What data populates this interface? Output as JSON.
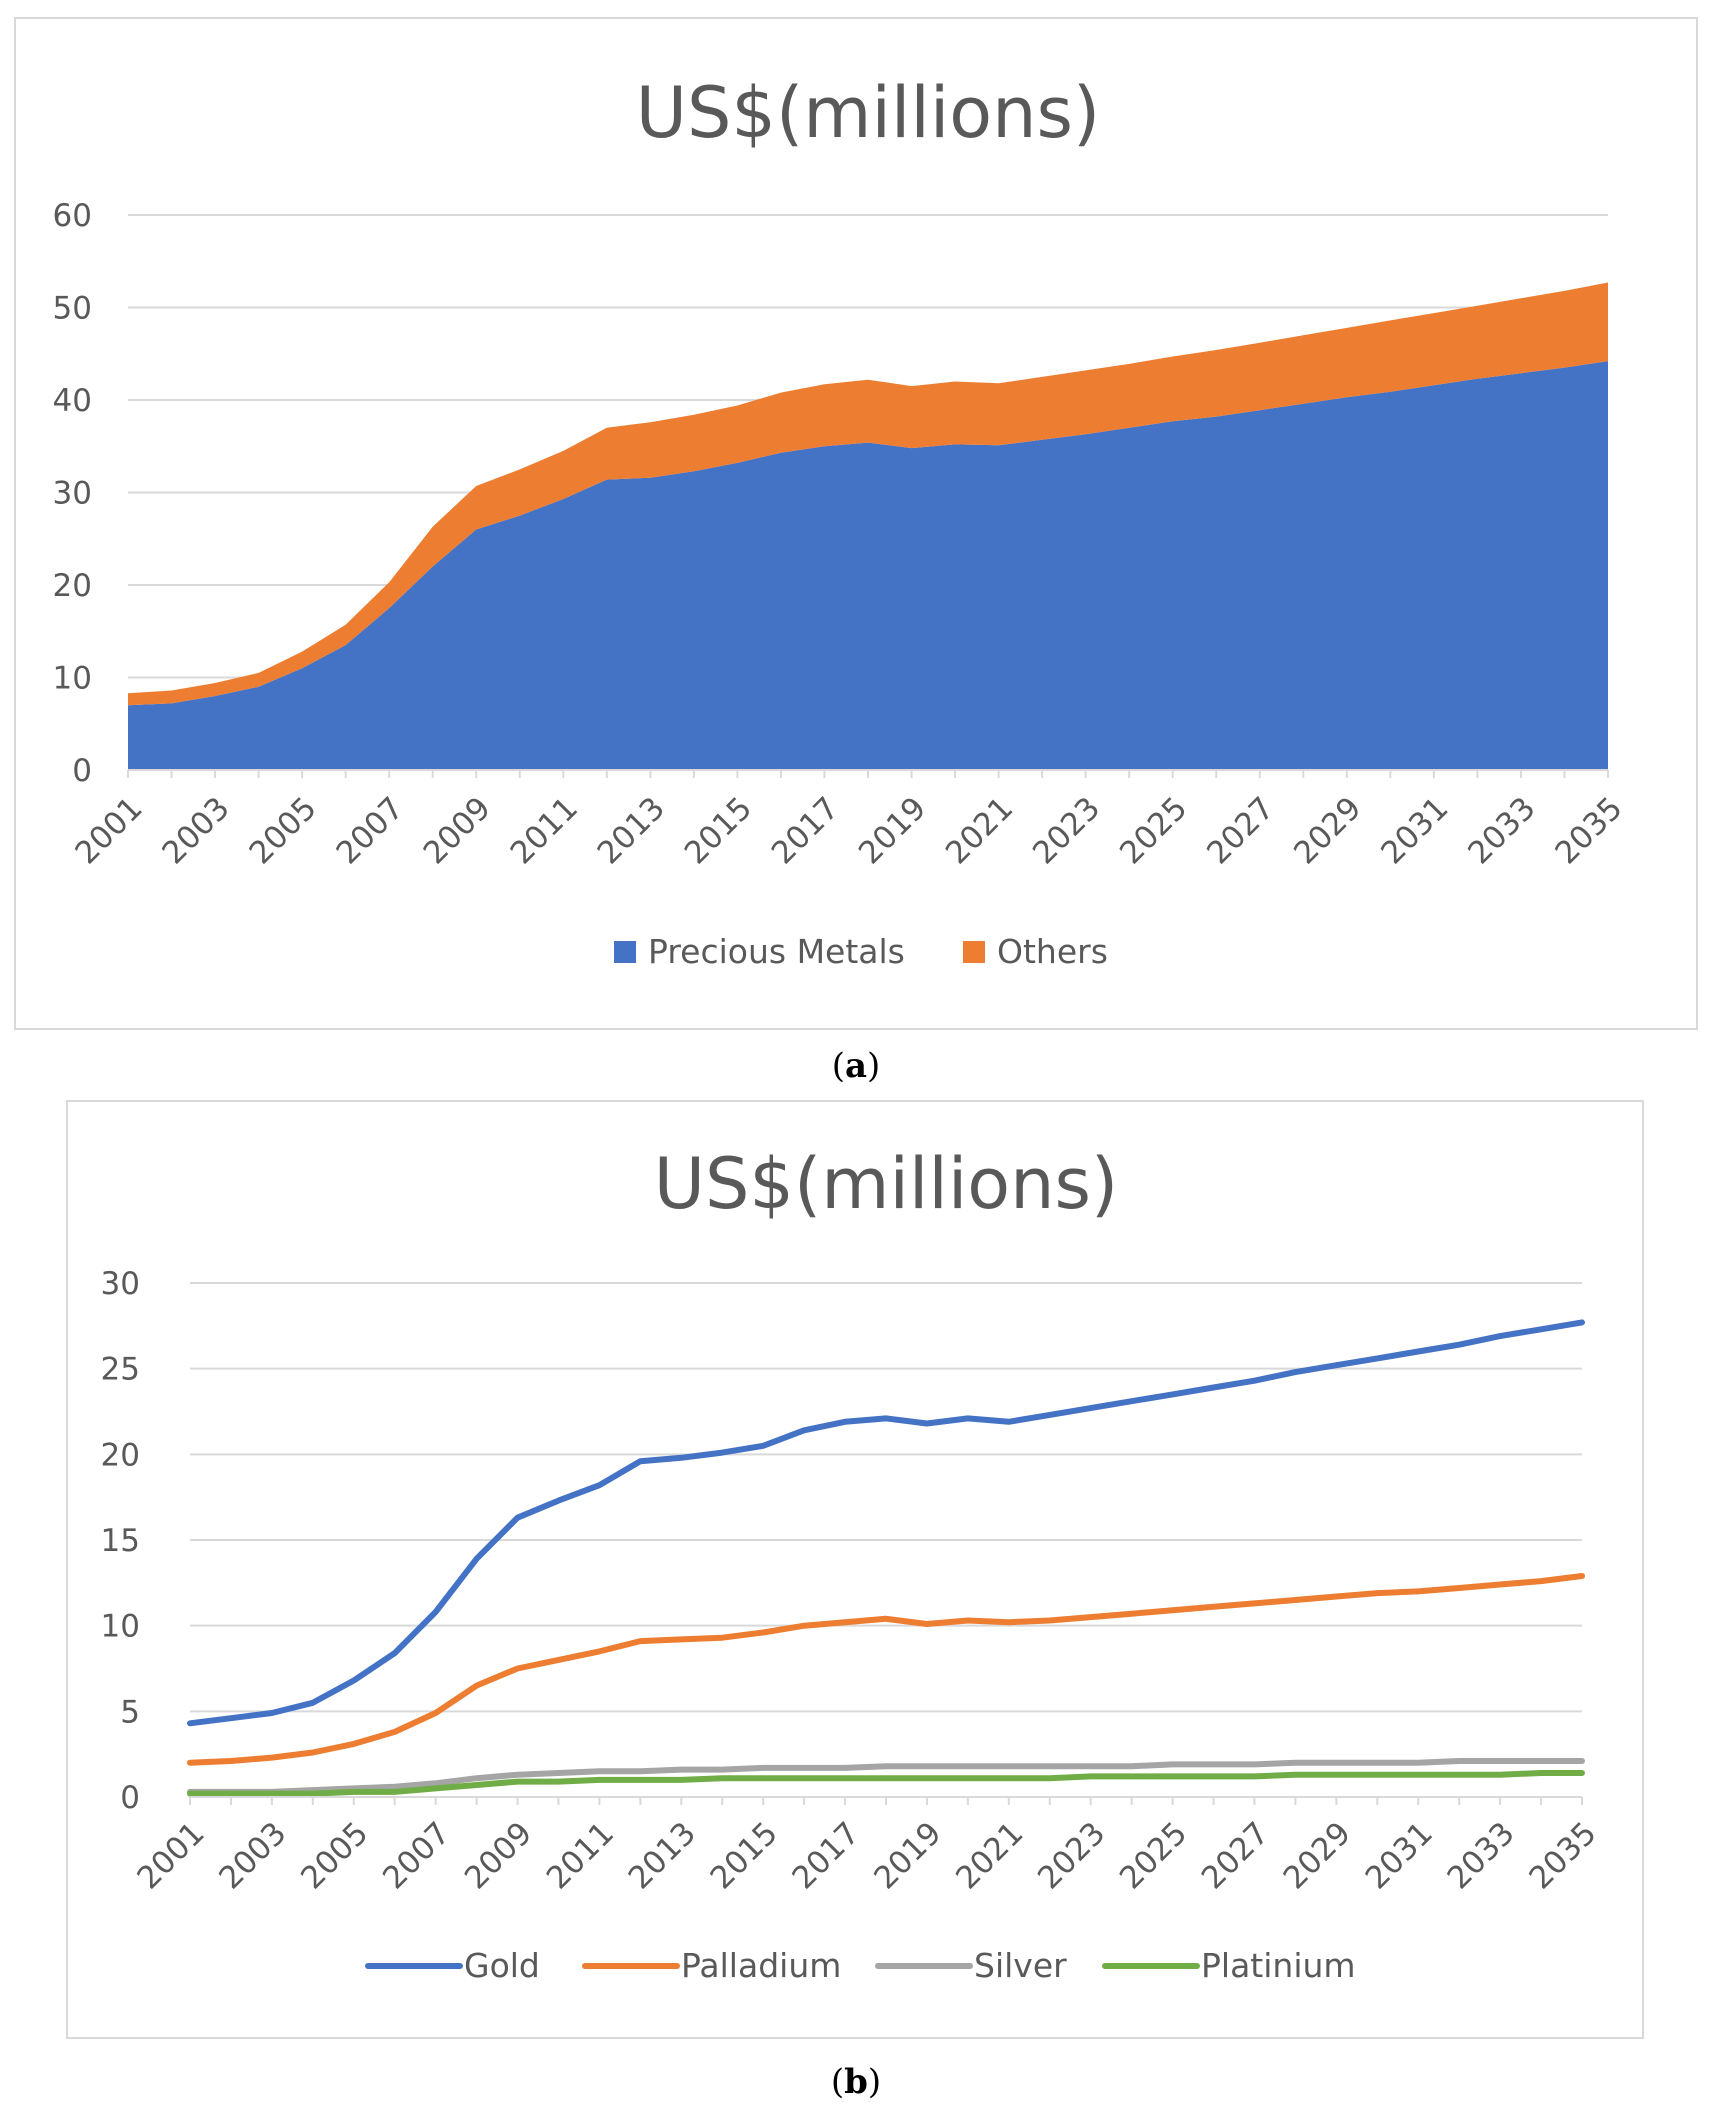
{
  "panels": [
    {
      "label_prefix": "(",
      "label": "a",
      "label_suffix": ")"
    },
    {
      "label_prefix": "(",
      "label": "b",
      "label_suffix": ")"
    }
  ],
  "chart_data": [
    {
      "type": "area",
      "stacked": true,
      "title": "US$(millions)",
      "xlabel": "",
      "ylabel": "",
      "ylim": [
        0,
        60
      ],
      "yticks": [
        0,
        10,
        20,
        30,
        40,
        50,
        60
      ],
      "grid": true,
      "legend_position": "bottom",
      "x": [
        2001,
        2002,
        2003,
        2004,
        2005,
        2006,
        2007,
        2008,
        2009,
        2010,
        2011,
        2012,
        2013,
        2014,
        2015,
        2016,
        2017,
        2018,
        2019,
        2020,
        2021,
        2022,
        2023,
        2024,
        2025,
        2026,
        2027,
        2028,
        2029,
        2030,
        2031,
        2032,
        2033,
        2034,
        2035
      ],
      "xtick_labels": [
        "2001",
        "2003",
        "2005",
        "2007",
        "2009",
        "2011",
        "2013",
        "2015",
        "2017",
        "2019",
        "2021",
        "2023",
        "2025",
        "2027",
        "2029",
        "2031",
        "2033",
        "2035"
      ],
      "series": [
        {
          "name": "Precious Metals",
          "color": "#4472c4",
          "values": [
            7.0,
            7.2,
            8.0,
            9.0,
            11.0,
            13.5,
            17.5,
            22.0,
            26.0,
            27.5,
            29.3,
            31.4,
            31.6,
            32.3,
            33.2,
            34.3,
            35.0,
            35.4,
            34.8,
            35.2,
            35.1,
            35.7,
            36.3,
            37.0,
            37.7,
            38.2,
            38.9,
            39.6,
            40.3,
            40.9,
            41.6,
            42.3,
            42.9,
            43.5,
            44.2
          ]
        },
        {
          "name": "Others",
          "color": "#ed7d31",
          "values": [
            1.3,
            1.4,
            1.4,
            1.5,
            1.8,
            2.2,
            2.8,
            4.3,
            4.7,
            5.0,
            5.2,
            5.6,
            6.0,
            6.1,
            6.2,
            6.5,
            6.7,
            6.8,
            6.7,
            6.8,
            6.7,
            6.8,
            6.9,
            6.9,
            7.0,
            7.2,
            7.3,
            7.4,
            7.5,
            7.7,
            7.8,
            7.9,
            8.1,
            8.3,
            8.5
          ]
        }
      ]
    },
    {
      "type": "line",
      "title": "US$(millions)",
      "xlabel": "",
      "ylabel": "",
      "ylim": [
        0,
        30
      ],
      "yticks": [
        0,
        5,
        10,
        15,
        20,
        25,
        30
      ],
      "grid": true,
      "legend_position": "bottom",
      "x": [
        2001,
        2002,
        2003,
        2004,
        2005,
        2006,
        2007,
        2008,
        2009,
        2010,
        2011,
        2012,
        2013,
        2014,
        2015,
        2016,
        2017,
        2018,
        2019,
        2020,
        2021,
        2022,
        2023,
        2024,
        2025,
        2026,
        2027,
        2028,
        2029,
        2030,
        2031,
        2032,
        2033,
        2034,
        2035
      ],
      "xtick_labels": [
        "2001",
        "2003",
        "2005",
        "2007",
        "2009",
        "2011",
        "2013",
        "2015",
        "2017",
        "2019",
        "2021",
        "2023",
        "2025",
        "2027",
        "2029",
        "2031",
        "2033",
        "2035"
      ],
      "series": [
        {
          "name": "Gold",
          "color": "#4472c4",
          "values": [
            4.3,
            4.6,
            4.9,
            5.5,
            6.8,
            8.4,
            10.8,
            13.9,
            16.3,
            17.3,
            18.2,
            19.6,
            19.8,
            20.1,
            20.5,
            21.4,
            21.9,
            22.1,
            21.8,
            22.1,
            21.9,
            22.3,
            22.7,
            23.1,
            23.5,
            23.9,
            24.3,
            24.8,
            25.2,
            25.6,
            26.0,
            26.4,
            26.9,
            27.3,
            27.7
          ]
        },
        {
          "name": "Palladium",
          "color": "#ed7d31",
          "values": [
            2.0,
            2.1,
            2.3,
            2.6,
            3.1,
            3.8,
            4.9,
            6.5,
            7.5,
            8.0,
            8.5,
            9.1,
            9.2,
            9.3,
            9.6,
            10.0,
            10.2,
            10.4,
            10.1,
            10.3,
            10.2,
            10.3,
            10.5,
            10.7,
            10.9,
            11.1,
            11.3,
            11.5,
            11.7,
            11.9,
            12.0,
            12.2,
            12.4,
            12.6,
            12.9
          ]
        },
        {
          "name": "Silver",
          "color": "#a5a5a5",
          "values": [
            0.3,
            0.3,
            0.3,
            0.4,
            0.5,
            0.6,
            0.8,
            1.1,
            1.3,
            1.4,
            1.5,
            1.5,
            1.6,
            1.6,
            1.7,
            1.7,
            1.7,
            1.8,
            1.8,
            1.8,
            1.8,
            1.8,
            1.8,
            1.8,
            1.9,
            1.9,
            1.9,
            2.0,
            2.0,
            2.0,
            2.0,
            2.1,
            2.1,
            2.1,
            2.1
          ]
        },
        {
          "name": "Platinium",
          "color": "#70ad47",
          "values": [
            0.2,
            0.2,
            0.2,
            0.2,
            0.3,
            0.3,
            0.5,
            0.7,
            0.9,
            0.9,
            1.0,
            1.0,
            1.0,
            1.1,
            1.1,
            1.1,
            1.1,
            1.1,
            1.1,
            1.1,
            1.1,
            1.1,
            1.2,
            1.2,
            1.2,
            1.2,
            1.2,
            1.3,
            1.3,
            1.3,
            1.3,
            1.3,
            1.3,
            1.4,
            1.4
          ]
        }
      ]
    }
  ]
}
